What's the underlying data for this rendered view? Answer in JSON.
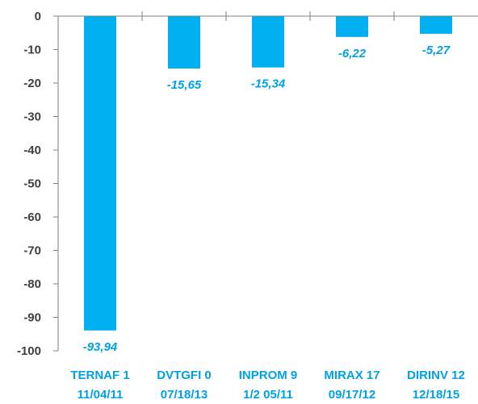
{
  "chart_data": {
    "type": "bar",
    "categories": [
      [
        "TERNAF 1",
        "11/04/11"
      ],
      [
        "DVTGFI 0",
        "07/18/13"
      ],
      [
        "INPROM 9",
        "1/2 05/11"
      ],
      [
        "MIRAX 17",
        "09/17/12"
      ],
      [
        "DIRINV 12",
        "12/18/15"
      ]
    ],
    "values": [
      -93.94,
      -15.65,
      -15.34,
      -6.22,
      -5.27
    ],
    "data_labels": [
      "-93,94",
      "-15,65",
      "-15,34",
      "-6,22",
      "-5,27"
    ],
    "ylim": [
      -100,
      0
    ],
    "yticks": [
      0,
      -10,
      -20,
      -30,
      -40,
      -50,
      -60,
      -70,
      -80,
      -90,
      -100
    ],
    "title": "",
    "xlabel": "",
    "ylabel": "",
    "grid": false,
    "legend": "none",
    "colors": {
      "bar": "#00B0F0",
      "category_label": "#00A0E6",
      "data_label": "#00A0E6",
      "axis": "#7F7F7F",
      "tick_label": "#404040"
    }
  }
}
